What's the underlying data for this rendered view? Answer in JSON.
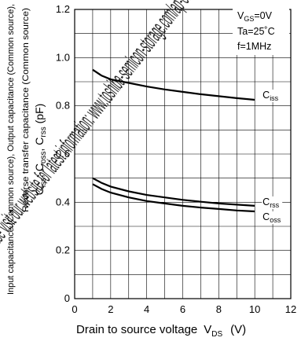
{
  "chart_data": {
    "type": "line",
    "xlabel": "Drain to source voltage",
    "xlabel_symbol": "V",
    "xlabel_symbol_sub": "DS",
    "xlabel_unit": "(V)",
    "ylabel_main_parts": [
      "C",
      "iss",
      ", C",
      "oss",
      ", C",
      "rss",
      "  (pF)"
    ],
    "ylabel_line1": "Input capacitance (Common source), Output capacitance (Common source),",
    "ylabel_line2": "Reverse transfer capacitance (Common source)",
    "xlim": [
      0,
      12
    ],
    "ylim": [
      0,
      1.2
    ],
    "x_ticks": [
      0,
      2,
      4,
      6,
      8,
      10,
      12
    ],
    "y_ticks": [
      0,
      0.2,
      0.4,
      0.6,
      0.8,
      1.0,
      1.2
    ],
    "x_tick_labels": [
      "0",
      "2",
      "4",
      "6",
      "8",
      "10",
      "12"
    ],
    "y_tick_labels": [
      "0",
      "0.2",
      "0.4",
      "0.6",
      "0.8",
      "1.0",
      "1.2"
    ],
    "grid": true,
    "grid_minor_x": 1,
    "grid_minor_y": 0.1,
    "conditions": {
      "vgs": {
        "main": "V",
        "sub": "GS",
        "rest": "=0V"
      },
      "ta": "Ta=25˚C",
      "f": "f=1MHz"
    },
    "series": [
      {
        "name": "Ciss",
        "label_main": "C",
        "label_sub": "iss",
        "x": [
          1,
          1.5,
          2,
          3,
          4,
          5,
          6,
          7,
          8,
          9,
          10
        ],
        "y": [
          0.95,
          0.925,
          0.91,
          0.895,
          0.88,
          0.868,
          0.858,
          0.848,
          0.84,
          0.832,
          0.825
        ]
      },
      {
        "name": "Crss",
        "label_main": "C",
        "label_sub": "rss",
        "x": [
          1,
          1.5,
          2,
          3,
          4,
          5,
          6,
          7,
          8,
          9,
          10
        ],
        "y": [
          0.5,
          0.48,
          0.465,
          0.445,
          0.43,
          0.42,
          0.41,
          0.402,
          0.395,
          0.39,
          0.385
        ]
      },
      {
        "name": "Coss",
        "label_main": "C",
        "label_sub": "oss",
        "x": [
          1,
          1.5,
          2,
          3,
          4,
          5,
          6,
          7,
          8,
          9,
          10
        ],
        "y": [
          0.475,
          0.455,
          0.44,
          0.42,
          0.405,
          0.395,
          0.385,
          0.378,
          0.372,
          0.366,
          0.362
        ]
      }
    ]
  },
  "watermark": {
    "text": "Please visit our website for latest information: www.toshiba-semicon-storage.com/ap-en/semiconductor/support/datasheet/sc/en",
    "color": "#e0001b"
  }
}
